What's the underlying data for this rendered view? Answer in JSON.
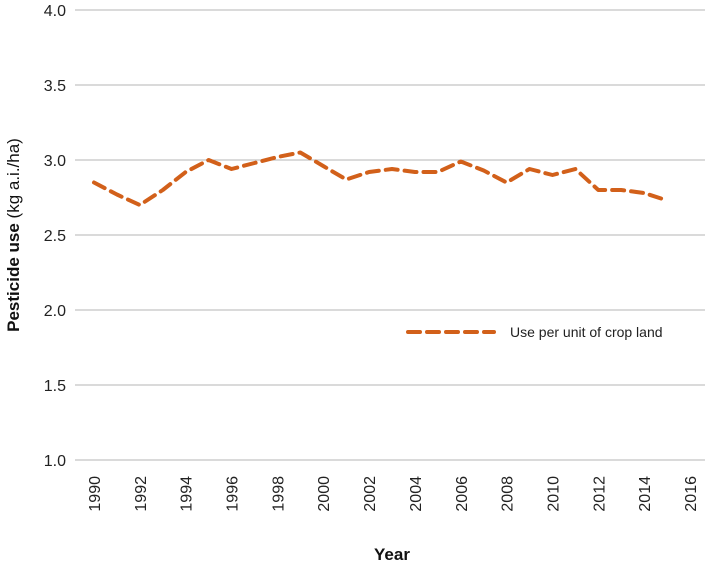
{
  "chart_data": {
    "type": "line",
    "xlabel": "Year",
    "ylabel_main": "Pesticide use",
    "ylabel_unit": " (kg a.i./ha)",
    "xlim": [
      1990,
      2016
    ],
    "ylim": [
      1.0,
      4.0
    ],
    "x_ticks": [
      "1990",
      "1992",
      "1994",
      "1996",
      "1998",
      "2000",
      "2002",
      "2004",
      "2006",
      "2008",
      "2010",
      "2012",
      "2014",
      "2016"
    ],
    "y_ticks": [
      "1.0",
      "1.5",
      "2.0",
      "2.5",
      "3.0",
      "3.5",
      "4.0"
    ],
    "grid": "horizontal",
    "legend_position": "center-right",
    "series": [
      {
        "name": "Use per unit of crop land",
        "color": "#d2601a",
        "style": "dashed",
        "x": [
          1990,
          1991,
          1992,
          1993,
          1994,
          1995,
          1996,
          1997,
          1998,
          1999,
          2000,
          2001,
          2002,
          2003,
          2004,
          2005,
          2006,
          2007,
          2008,
          2009,
          2010,
          2011,
          2012,
          2013,
          2014,
          2015
        ],
        "values": [
          2.85,
          2.77,
          2.7,
          2.8,
          2.92,
          3.0,
          2.94,
          2.98,
          3.02,
          3.05,
          2.96,
          2.87,
          2.92,
          2.94,
          2.92,
          2.92,
          2.99,
          2.93,
          2.85,
          2.94,
          2.9,
          2.94,
          2.8,
          2.8,
          2.78,
          2.73
        ]
      }
    ]
  }
}
